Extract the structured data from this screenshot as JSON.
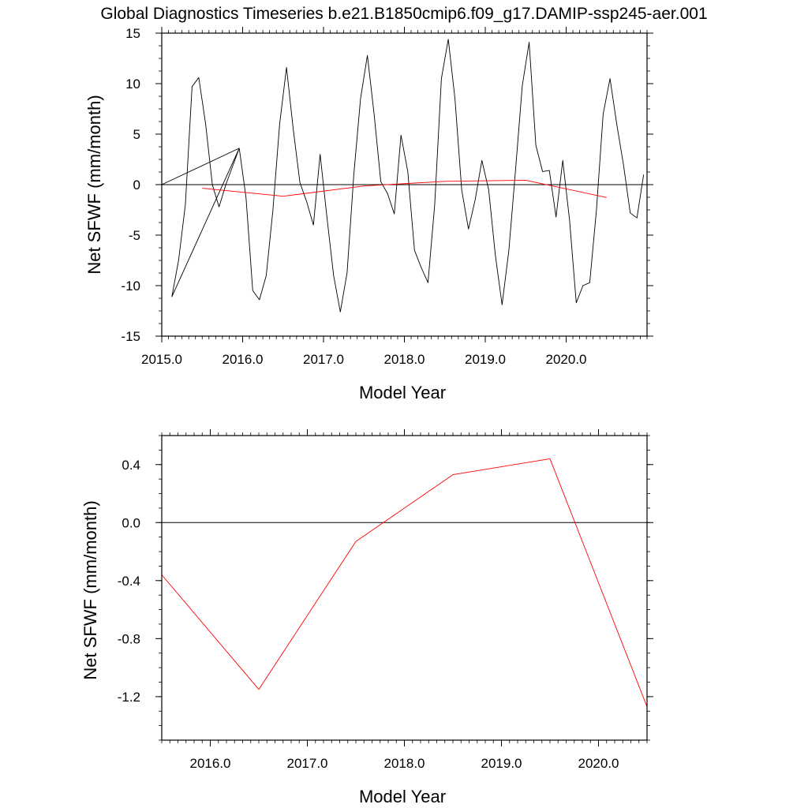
{
  "title": "Global Diagnostics Timeseries b.e21.B1850cmip6.f09_g17.DAMIP-ssp245-aer.001",
  "colors": {
    "monthly": "#000000",
    "annual": "#ff0000",
    "zero_line": "#000000"
  },
  "chart_data": [
    {
      "type": "line",
      "xlabel": "Model Year",
      "ylabel": "Net SFWF (mm/month)",
      "xlim": [
        2015.0,
        2021.0
      ],
      "ylim": [
        -15,
        15
      ],
      "xticks": [
        2015.0,
        2016.0,
        2017.0,
        2018.0,
        2019.0,
        2020.0
      ],
      "xtick_labels": [
        "2015.0",
        "2016.0",
        "2017.0",
        "2018.0",
        "2019.0",
        "2020.0"
      ],
      "yticks": [
        15,
        10,
        5,
        0,
        -5,
        -10,
        -15
      ],
      "ytick_labels": [
        "15",
        "10",
        "5",
        "0",
        "-5",
        "-10",
        "-15"
      ],
      "reference_line": 0,
      "series": [
        {
          "color": "#000000",
          "x": [
            2015.0,
            2015.958,
            2015.792,
            2015.708,
            2015.625,
            2015.542,
            2015.458,
            2015.375,
            2015.292,
            2015.208,
            2015.125,
            2015.958,
            2016.042,
            2016.125,
            2016.208,
            2016.292,
            2016.375,
            2016.458,
            2016.542,
            2016.625,
            2016.708,
            2016.792,
            2016.875,
            2016.958,
            2017.042,
            2017.125,
            2017.208,
            2017.292,
            2017.375,
            2017.458,
            2017.542,
            2017.625,
            2017.708,
            2017.792,
            2017.875,
            2017.958,
            2018.042,
            2018.125,
            2018.208,
            2018.292,
            2018.375,
            2018.458,
            2018.542,
            2018.625,
            2018.708,
            2018.792,
            2018.875,
            2018.958,
            2019.042,
            2019.125,
            2019.208,
            2019.292,
            2019.375,
            2019.458,
            2019.542,
            2019.625,
            2019.708,
            2019.792,
            2019.875,
            2019.958,
            2020.042,
            2020.125,
            2020.208,
            2020.292,
            2020.375,
            2020.458,
            2020.542,
            2020.625,
            2020.708,
            2020.792,
            2020.875,
            2020.958
          ],
          "y": [
            0.0,
            3.6,
            0.0,
            -2.2,
            0.0,
            6.0,
            10.6,
            9.7,
            -2.0,
            -7.5,
            -11.1,
            3.6,
            -1.3,
            -10.5,
            -11.4,
            -9.0,
            -2.5,
            6.0,
            11.6,
            5.5,
            0.2,
            -1.7,
            -4.0,
            3.0,
            -3.2,
            -9.0,
            -12.6,
            -8.7,
            1.0,
            8.5,
            12.8,
            7.0,
            0.3,
            -0.9,
            -2.9,
            4.9,
            1.3,
            -6.5,
            -8.2,
            -9.7,
            -2.0,
            10.5,
            14.4,
            8.5,
            -0.5,
            -4.4,
            -1.5,
            2.4,
            -0.5,
            -7.0,
            -11.9,
            -6.5,
            1.5,
            9.8,
            14.1,
            3.9,
            1.3,
            1.4,
            -3.2,
            2.4,
            -3.5,
            -11.7,
            -10.0,
            -9.7,
            -2.5,
            7.0,
            10.5,
            6.0,
            2.0,
            -2.8,
            -3.3,
            1.0
          ]
        },
        {
          "color": "#ff0000",
          "x": [
            2015.5,
            2016.5,
            2017.5,
            2018.5,
            2019.5,
            2020.5
          ],
          "y": [
            -0.36,
            -1.15,
            -0.13,
            0.33,
            0.44,
            -1.27
          ]
        }
      ]
    },
    {
      "type": "line",
      "xlabel": "Model Year",
      "ylabel": "Net SFWF (mm/month)",
      "xlim": [
        2015.5,
        2020.5
      ],
      "ylim": [
        -1.5,
        0.6
      ],
      "xticks": [
        2016.0,
        2017.0,
        2018.0,
        2019.0,
        2020.0
      ],
      "xtick_labels": [
        "2016.0",
        "2017.0",
        "2018.0",
        "2019.0",
        "2020.0"
      ],
      "yticks": [
        0.4,
        0.0,
        -0.4,
        -0.8,
        -1.2
      ],
      "ytick_labels": [
        "0.4",
        "0.0",
        "-0.4",
        "-0.8",
        "-1.2"
      ],
      "reference_line": 0,
      "series": [
        {
          "color": "#ff0000",
          "x": [
            2015.5,
            2016.5,
            2017.5,
            2018.5,
            2019.5,
            2020.5
          ],
          "y": [
            -0.36,
            -1.15,
            -0.13,
            0.33,
            0.44,
            -1.27
          ]
        }
      ]
    }
  ]
}
